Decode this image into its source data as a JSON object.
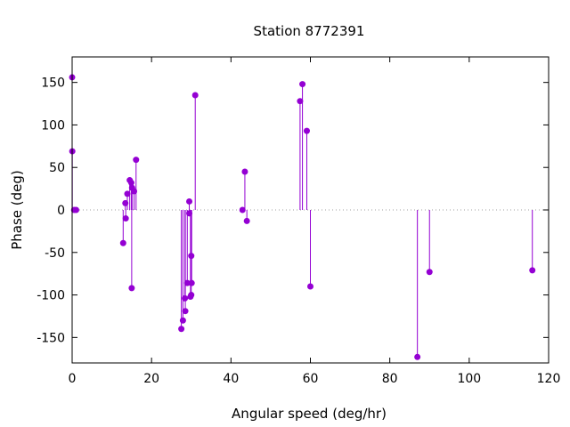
{
  "chart_data": {
    "type": "scatter",
    "style": "impulses-with-points",
    "title": "Station 8772391",
    "xlabel": "Angular speed (deg/hr)",
    "ylabel": "Phase (deg)",
    "xlim": [
      0,
      120
    ],
    "ylim": [
      -180,
      180
    ],
    "xticks": [
      0,
      20,
      40,
      60,
      80,
      100,
      120
    ],
    "yticks": [
      -150,
      -100,
      -50,
      0,
      50,
      100,
      150
    ],
    "grid": false,
    "zero_line": true,
    "color": "#9400d3",
    "points": [
      {
        "x": 0.0,
        "y": 156
      },
      {
        "x": 0.04,
        "y": 69
      },
      {
        "x": 0.5,
        "y": 0
      },
      {
        "x": 1.0,
        "y": 0
      },
      {
        "x": 12.85,
        "y": -39
      },
      {
        "x": 13.4,
        "y": 8
      },
      {
        "x": 13.5,
        "y": -10
      },
      {
        "x": 13.9,
        "y": 19
      },
      {
        "x": 14.5,
        "y": 35
      },
      {
        "x": 14.9,
        "y": 32
      },
      {
        "x": 15.0,
        "y": -92
      },
      {
        "x": 15.1,
        "y": 26
      },
      {
        "x": 15.6,
        "y": 22
      },
      {
        "x": 16.1,
        "y": 59
      },
      {
        "x": 27.5,
        "y": -140
      },
      {
        "x": 27.9,
        "y": -130
      },
      {
        "x": 28.4,
        "y": -104
      },
      {
        "x": 28.5,
        "y": -119
      },
      {
        "x": 29.0,
        "y": -86
      },
      {
        "x": 29.5,
        "y": -4
      },
      {
        "x": 29.5,
        "y": 10
      },
      {
        "x": 29.8,
        "y": -102
      },
      {
        "x": 30.0,
        "y": -100
      },
      {
        "x": 30.0,
        "y": -54
      },
      {
        "x": 30.1,
        "y": -86
      },
      {
        "x": 31.0,
        "y": 135
      },
      {
        "x": 42.9,
        "y": 0
      },
      {
        "x": 43.5,
        "y": 45
      },
      {
        "x": 44.0,
        "y": -13
      },
      {
        "x": 57.4,
        "y": 128
      },
      {
        "x": 58.0,
        "y": 148
      },
      {
        "x": 59.1,
        "y": 93
      },
      {
        "x": 60.0,
        "y": -90
      },
      {
        "x": 86.95,
        "y": -173
      },
      {
        "x": 90.0,
        "y": -73
      },
      {
        "x": 115.9,
        "y": -71
      }
    ]
  }
}
